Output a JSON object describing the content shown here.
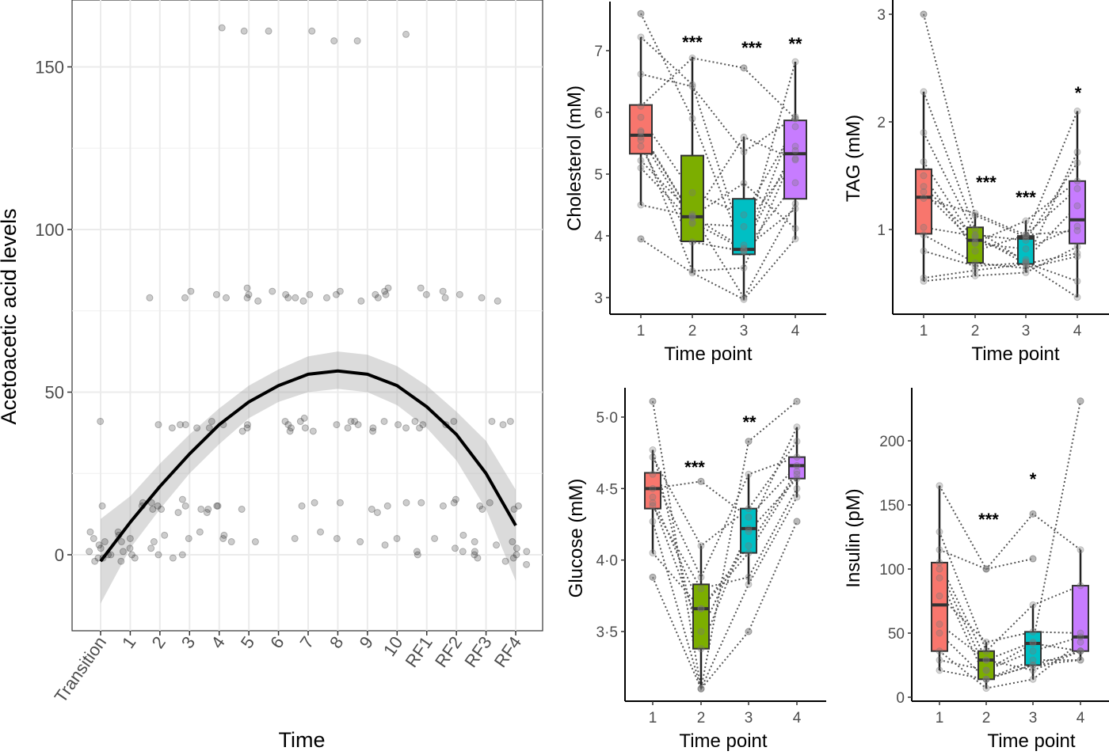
{
  "chart_data": [
    {
      "id": "acetoacetic",
      "type": "scatter",
      "title": "",
      "xlabel": "Time",
      "ylabel": "Acetoacetic acid levels",
      "categories": [
        "Transition",
        "1",
        "2",
        "3",
        "4",
        "5",
        "6",
        "7",
        "8",
        "9",
        "10",
        "RF1",
        "RF2",
        "RF3",
        "RF4"
      ],
      "yticks": [
        0,
        50,
        100,
        150
      ],
      "ylim": [
        -23,
        171
      ],
      "grid": true,
      "smooth_fit": {
        "values": [
          -2,
          10,
          21,
          31,
          40,
          47,
          52,
          55.5,
          56.5,
          55.5,
          52,
          45.5,
          37,
          25,
          9
        ],
        "ci_lower": [
          -15,
          2,
          14,
          25,
          34,
          42,
          47,
          50,
          51,
          50,
          46,
          39,
          29,
          14,
          -8
        ],
        "ci_upper": [
          11,
          18,
          28,
          37,
          45,
          52,
          57,
          61,
          62.5,
          61.5,
          58,
          52,
          44,
          35,
          20
        ]
      },
      "points": [
        {
          "x": "Transition",
          "y": [
            41,
            15,
            7,
            5,
            3,
            2,
            1,
            0,
            -1,
            -1,
            -2,
            0,
            4
          ]
        },
        {
          "x": "1",
          "y": [
            6,
            5,
            1,
            -1,
            -2,
            0,
            2,
            4,
            7,
            15,
            16
          ]
        },
        {
          "x": "2",
          "y": [
            79,
            40,
            39,
            16,
            15,
            14,
            6,
            4,
            2,
            -1,
            0,
            14
          ]
        },
        {
          "x": "3",
          "y": [
            81,
            79,
            40,
            39,
            40,
            15,
            13,
            14,
            17,
            7,
            5,
            0
          ]
        },
        {
          "x": "4",
          "y": [
            162,
            80,
            79,
            40,
            39,
            41,
            15,
            14,
            13,
            15,
            6,
            5,
            4
          ]
        },
        {
          "x": "5",
          "y": [
            161,
            82,
            80,
            79,
            78,
            40,
            39,
            38,
            14,
            4
          ]
        },
        {
          "x": "6",
          "y": [
            161,
            81,
            80,
            79,
            39,
            38,
            40,
            41
          ]
        },
        {
          "x": "7",
          "y": [
            161,
            80,
            79,
            78,
            42,
            41,
            39,
            38,
            16,
            15,
            7,
            5
          ]
        },
        {
          "x": "8",
          "y": [
            158,
            81,
            80,
            79,
            41,
            40,
            39,
            16,
            5
          ]
        },
        {
          "x": "9",
          "y": [
            158,
            80,
            79,
            78,
            41,
            40,
            39,
            38,
            14,
            13,
            4
          ]
        },
        {
          "x": "10",
          "y": [
            160,
            82,
            81,
            80,
            41,
            40,
            39,
            16,
            15,
            5,
            3
          ]
        },
        {
          "x": "RF1",
          "y": [
            82,
            80,
            41,
            40,
            39,
            16,
            5,
            1,
            0
          ]
        },
        {
          "x": "RF2",
          "y": [
            81,
            80,
            79,
            41,
            40,
            17,
            16,
            15,
            6,
            2,
            1
          ]
        },
        {
          "x": "RF3",
          "y": [
            79,
            78,
            41,
            16,
            15,
            14,
            4,
            3,
            1,
            0,
            -1
          ]
        },
        {
          "x": "RF4",
          "y": [
            41,
            40,
            15,
            14,
            4,
            2,
            1,
            0,
            -1,
            -2,
            -3
          ]
        }
      ]
    },
    {
      "id": "cholesterol",
      "type": "box",
      "xlabel": "Time point",
      "ylabel": "Cholesterol (mM)",
      "categories": [
        "1",
        "2",
        "3",
        "4"
      ],
      "yticks": [
        3,
        4,
        5,
        6,
        7
      ],
      "ytick_labels": [
        "3",
        "4",
        "5",
        "6",
        "7"
      ],
      "ylim": [
        2.7,
        7.8
      ],
      "colors": [
        "#F8766D",
        "#7CAE00",
        "#00BFC4",
        "#C77CFF"
      ],
      "boxes": [
        {
          "q1": 5.33,
          "median": 5.63,
          "q3": 6.12,
          "whisker_low": 4.5,
          "whisker_high": 7.22,
          "outliers": [
            7.6,
            3.95
          ]
        },
        {
          "q1": 3.91,
          "median": 4.31,
          "q3": 5.3,
          "whisker_low": 3.4,
          "whisker_high": 6.9,
          "outliers": []
        },
        {
          "q1": 3.7,
          "median": 3.78,
          "q3": 4.6,
          "whisker_low": 2.97,
          "whisker_high": 5.6,
          "outliers": [
            6.72
          ]
        },
        {
          "q1": 4.6,
          "median": 5.33,
          "q3": 5.87,
          "whisker_low": 3.95,
          "whisker_high": 6.82,
          "outliers": []
        }
      ],
      "significance": [
        "",
        "***",
        "***",
        "**"
      ],
      "subjects": [
        [
          7.6,
          5.9,
          3.75,
          5.9
        ],
        [
          7.22,
          6.45,
          3.85,
          6.82
        ],
        [
          6.62,
          6.42,
          5.36,
          5.93
        ],
        [
          6.1,
          6.88,
          6.72,
          5.9
        ],
        [
          5.92,
          4.7,
          4.34,
          5.77
        ],
        [
          5.7,
          4.31,
          3.8,
          5.45
        ],
        [
          5.6,
          4.2,
          4.15,
          5.25
        ],
        [
          5.55,
          3.43,
          3.48,
          5.38
        ],
        [
          5.45,
          3.9,
          3.75,
          4.86
        ],
        [
          5.22,
          4.35,
          3.0,
          4.52
        ],
        [
          5.1,
          4.22,
          3.78,
          4.44
        ],
        [
          4.5,
          4.32,
          4.85,
          4.12
        ],
        [
          3.95,
          3.4,
          2.97,
          3.95
        ],
        [
          5.68,
          4.3,
          5.6,
          5.23
        ]
      ]
    },
    {
      "id": "tag",
      "type": "box",
      "xlabel": "Time point",
      "ylabel": "TAG (mM)",
      "categories": [
        "1",
        "2",
        "3",
        "4"
      ],
      "yticks": [
        1,
        2,
        3
      ],
      "ytick_labels": [
        "1",
        "2",
        "3"
      ],
      "ylim": [
        0.21,
        3.08
      ],
      "colors": [
        "#F8766D",
        "#7CAE00",
        "#00BFC4",
        "#C77CFF"
      ],
      "boxes": [
        {
          "q1": 0.96,
          "median": 1.3,
          "q3": 1.56,
          "whisker_low": 0.52,
          "whisker_high": 2.28,
          "outliers": [
            3.0
          ]
        },
        {
          "q1": 0.69,
          "median": 0.9,
          "q3": 1.02,
          "whisker_low": 0.57,
          "whisker_high": 1.15,
          "outliers": []
        },
        {
          "q1": 0.68,
          "median": 0.92,
          "q3": 0.94,
          "whisker_low": 0.6,
          "whisker_high": 1.08,
          "outliers": []
        },
        {
          "q1": 0.87,
          "median": 1.09,
          "q3": 1.45,
          "whisker_low": 0.37,
          "whisker_high": 2.1,
          "outliers": []
        }
      ],
      "significance": [
        "",
        "***",
        "***",
        "*"
      ],
      "subjects": [
        [
          3.0,
          1.13,
          0.93,
          2.1
        ],
        [
          2.28,
          1.0,
          0.7,
          1.72
        ],
        [
          1.9,
          0.95,
          0.9,
          1.62
        ],
        [
          1.63,
          0.88,
          1.08,
          1.45
        ],
        [
          1.5,
          0.8,
          0.95,
          1.38
        ],
        [
          1.4,
          0.92,
          0.72,
          1.22
        ],
        [
          1.29,
          1.15,
          0.95,
          0.99
        ],
        [
          1.02,
          0.94,
          0.68,
          0.78
        ],
        [
          0.95,
          0.69,
          0.64,
          0.75
        ],
        [
          0.8,
          0.66,
          0.69,
          0.52
        ],
        [
          0.55,
          0.62,
          0.68,
          0.37
        ],
        [
          0.52,
          0.57,
          0.6,
          0.84
        ],
        [
          1.35,
          0.87,
          0.82,
          1.03
        ]
      ]
    },
    {
      "id": "glucose",
      "type": "box",
      "xlabel": "Time point",
      "ylabel": "Glucose (mM)",
      "categories": [
        "1",
        "2",
        "3",
        "4"
      ],
      "yticks": [
        3.5,
        4.0,
        4.5,
        5.0
      ],
      "ytick_labels": [
        "3·5",
        "4·0",
        "4·5",
        "5·0"
      ],
      "ylim": [
        3.03,
        5.2
      ],
      "colors": [
        "#F8766D",
        "#7CAE00",
        "#00BFC4",
        "#C77CFF"
      ],
      "boxes": [
        {
          "q1": 4.36,
          "median": 4.5,
          "q3": 4.61,
          "whisker_low": 4.05,
          "whisker_high": 4.77,
          "outliers": [
            5.11,
            3.88
          ]
        },
        {
          "q1": 3.38,
          "median": 3.66,
          "q3": 3.83,
          "whisker_low": 3.1,
          "whisker_high": 4.1,
          "outliers": [
            4.55
          ]
        },
        {
          "q1": 4.05,
          "median": 4.22,
          "q3": 4.36,
          "whisker_low": 3.83,
          "whisker_high": 4.6,
          "outliers": [
            4.83,
            3.5
          ]
        },
        {
          "q1": 4.57,
          "median": 4.66,
          "q3": 4.72,
          "whisker_low": 4.44,
          "whisker_high": 4.93,
          "outliers": [
            5.11,
            4.27
          ]
        }
      ],
      "significance": [
        "",
        "***",
        "**",
        ""
      ],
      "subjects": [
        [
          5.11,
          3.1,
          4.83,
          5.11
        ],
        [
          4.77,
          3.38,
          4.22,
          4.93
        ],
        [
          4.72,
          4.1,
          4.36,
          4.83
        ],
        [
          4.6,
          3.88,
          4.6,
          4.72
        ],
        [
          4.5,
          4.55,
          4.3,
          4.66
        ],
        [
          4.44,
          3.66,
          4.05,
          4.6
        ],
        [
          4.38,
          3.8,
          3.88,
          4.5
        ],
        [
          4.27,
          3.1,
          3.83,
          4.44
        ],
        [
          4.05,
          3.66,
          4.1,
          4.62
        ],
        [
          3.88,
          3.1,
          3.5,
          4.27
        ],
        [
          4.4,
          3.5,
          4.2,
          4.57
        ]
      ]
    },
    {
      "id": "insulin",
      "type": "box",
      "xlabel": "Time point",
      "ylabel": "Insulin (pM)",
      "categories": [
        "1",
        "2",
        "3",
        "4"
      ],
      "yticks": [
        0,
        50,
        100,
        150,
        200
      ],
      "ytick_labels": [
        "0",
        "50",
        "100",
        "150",
        "200"
      ],
      "ylim": [
        -10,
        240
      ],
      "colors": [
        "#F8766D",
        "#7CAE00",
        "#00BFC4",
        "#C77CFF"
      ],
      "boxes": [
        {
          "q1": 36,
          "median": 72,
          "q3": 105,
          "whisker_low": 21,
          "whisker_high": 165,
          "outliers": []
        },
        {
          "q1": 14,
          "median": 29,
          "q3": 36,
          "whisker_low": 7,
          "whisker_high": 43,
          "outliers": [
            100
          ]
        },
        {
          "q1": 25,
          "median": 42,
          "q3": 51,
          "whisker_low": 14,
          "whisker_high": 72,
          "outliers": [
            143,
            108
          ]
        },
        {
          "q1": 36,
          "median": 47,
          "q3": 87,
          "whisker_low": 29,
          "whisker_high": 115,
          "outliers": [
            231
          ]
        }
      ],
      "significance": [
        "",
        "***",
        "*",
        ""
      ],
      "subjects": [
        [
          165,
          100,
          143,
          115
        ],
        [
          129,
          36,
          72,
          87
        ],
        [
          115,
          100,
          108,
          null
        ],
        [
          105,
          29,
          43,
          231
        ],
        [
          100,
          21,
          36,
          47
        ],
        [
          93,
          14,
          25,
          36
        ],
        [
          79,
          43,
          51,
          50
        ],
        [
          57,
          29,
          21,
          36
        ],
        [
          50,
          14,
          29,
          29
        ],
        [
          36,
          7,
          14,
          43
        ],
        [
          29,
          21,
          42,
          36
        ],
        [
          21,
          14,
          25,
          29
        ]
      ]
    }
  ]
}
